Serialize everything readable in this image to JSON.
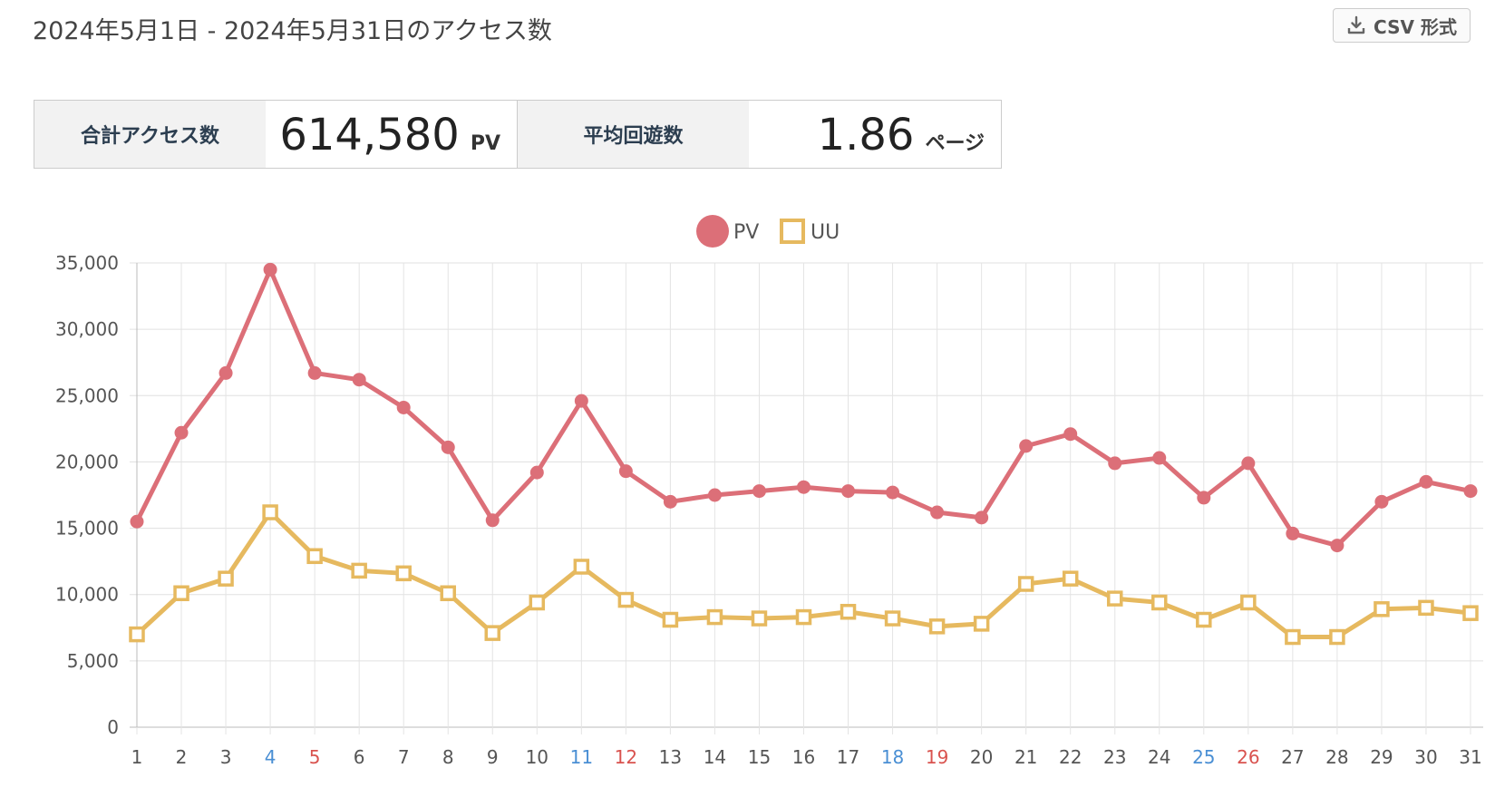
{
  "header": {
    "title": "2024年5月1日 - 2024年5月31日のアクセス数",
    "csv_button": "CSV 形式",
    "csv_icon": "download-icon"
  },
  "stats": {
    "total_label": "合計アクセス数",
    "total_value": "614,580",
    "total_unit": "PV",
    "avg_label": "平均回遊数",
    "avg_value": "1.86",
    "avg_unit": "ページ"
  },
  "colors": {
    "pv": "#dc6f78",
    "uu": "#e6b95f",
    "weekday": "#555555",
    "saturday": "#4a8fd4",
    "sunday": "#d9534f"
  },
  "chart_data": {
    "type": "line",
    "x": [
      "1",
      "2",
      "3",
      "4",
      "5",
      "6",
      "7",
      "8",
      "9",
      "10",
      "11",
      "12",
      "13",
      "14",
      "15",
      "16",
      "17",
      "18",
      "19",
      "20",
      "21",
      "22",
      "23",
      "24",
      "25",
      "26",
      "27",
      "28",
      "29",
      "30",
      "31"
    ],
    "x_day_type": [
      "w",
      "w",
      "w",
      "sat",
      "sun",
      "w",
      "w",
      "w",
      "w",
      "w",
      "sat",
      "sun",
      "w",
      "w",
      "w",
      "w",
      "w",
      "sat",
      "sun",
      "w",
      "w",
      "w",
      "w",
      "w",
      "sat",
      "sun",
      "w",
      "w",
      "w",
      "w",
      "w"
    ],
    "series": [
      {
        "name": "PV",
        "marker": "circle",
        "values": [
          15500,
          22200,
          26700,
          34500,
          26700,
          26200,
          24100,
          21100,
          15600,
          19200,
          24600,
          19300,
          17000,
          17500,
          17800,
          18100,
          17800,
          17700,
          16200,
          15800,
          21200,
          22100,
          19900,
          20300,
          17300,
          19900,
          14600,
          13700,
          17000,
          18500,
          17800
        ]
      },
      {
        "name": "UU",
        "marker": "square",
        "values": [
          7000,
          10100,
          11200,
          16200,
          12900,
          11800,
          11600,
          10100,
          7100,
          9400,
          12100,
          9600,
          8100,
          8300,
          8200,
          8300,
          8700,
          8200,
          7600,
          7800,
          10800,
          11200,
          9700,
          9400,
          8100,
          9400,
          6800,
          6800,
          8900,
          9000,
          8600
        ]
      }
    ],
    "y_ticks": [
      "0",
      "5,000",
      "10,000",
      "15,000",
      "20,000",
      "25,000",
      "30,000",
      "35,000"
    ],
    "ylim": [
      0,
      35000
    ],
    "grid": true,
    "legend": "top-center"
  }
}
